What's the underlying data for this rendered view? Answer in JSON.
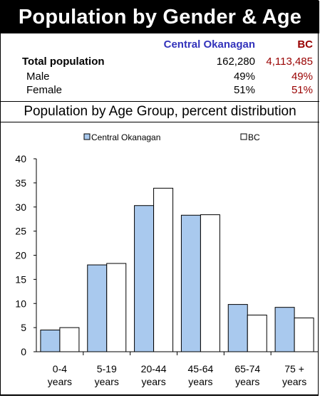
{
  "title": "Population by Gender & Age",
  "colors": {
    "region_a": "#3333bb",
    "region_b": "#990000",
    "bar_a": "#a9c9ee",
    "bar_b": "#ffffff"
  },
  "table": {
    "header_a": "Central Okanagan",
    "header_b": "BC",
    "rows": [
      {
        "label": "Total population",
        "a": "162,280",
        "b": "4,113,485"
      },
      {
        "label": "Male",
        "a": "49%",
        "b": "49%"
      },
      {
        "label": "Female",
        "a": "51%",
        "b": "51%"
      }
    ]
  },
  "subtitle": "Population by Age Group, percent distribution",
  "chart_data": {
    "type": "bar",
    "categories": [
      [
        "0-4",
        "years"
      ],
      [
        "5-19",
        "years"
      ],
      [
        "20-44",
        "years"
      ],
      [
        "45-64",
        "years"
      ],
      [
        "65-74",
        "years"
      ],
      [
        "75 +",
        "years"
      ]
    ],
    "series": [
      {
        "name": "Central Okanagan",
        "values": [
          4.5,
          18.0,
          30.3,
          28.3,
          9.8,
          9.2
        ]
      },
      {
        "name": "BC",
        "values": [
          5.0,
          18.3,
          33.9,
          28.4,
          7.6,
          7.0
        ]
      }
    ],
    "ylim": [
      0,
      40
    ],
    "yticks": [
      "0",
      "5",
      "10",
      "15",
      "20",
      "25",
      "30",
      "35",
      "40"
    ],
    "legend_position": "top",
    "grid": false
  }
}
